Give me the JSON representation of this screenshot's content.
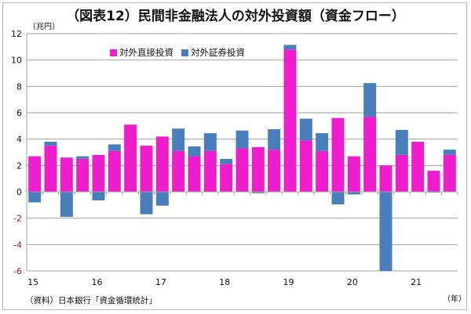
{
  "chart_data": {
    "type": "bar",
    "stacked": true,
    "title": "（図表12）民間非金融法人の対外投資額（資金フロー）",
    "ylabel": "（兆円）",
    "xlabel": "（年）",
    "source": "（資料）日本銀行「資金循環統計」",
    "ylim": [
      -6,
      12
    ],
    "yticks": [
      12,
      10,
      8,
      6,
      4,
      2,
      0,
      -2,
      -4,
      -6
    ],
    "grid": true,
    "legend_position": "top-left",
    "year_labels": [
      "15",
      "16",
      "17",
      "18",
      "19",
      "20",
      "21"
    ],
    "categories": [
      "15Q1",
      "15Q2",
      "15Q3",
      "15Q4",
      "16Q1",
      "16Q2",
      "16Q3",
      "16Q4",
      "17Q1",
      "17Q2",
      "17Q3",
      "17Q4",
      "18Q1",
      "18Q2",
      "18Q3",
      "18Q4",
      "19Q1",
      "19Q2",
      "19Q3",
      "19Q4",
      "20Q1",
      "20Q2",
      "20Q3",
      "20Q4",
      "21Q1",
      "21Q2",
      "21Q3"
    ],
    "series": [
      {
        "name": "対外直接投資",
        "color": "#ee1ecd",
        "values": [
          2.7,
          3.5,
          2.6,
          2.5,
          2.8,
          3.1,
          5.1,
          3.5,
          4.2,
          3.1,
          2.7,
          3.1,
          2.1,
          3.3,
          3.4,
          3.2,
          10.8,
          3.9,
          3.1,
          5.6,
          2.7,
          5.7,
          2.0,
          2.8,
          3.8,
          1.6,
          2.8
        ]
      },
      {
        "name": "対外証券投資",
        "color": "#4a7ebb",
        "values": [
          -0.8,
          0.3,
          -1.9,
          0.2,
          -0.65,
          0.5,
          0.0,
          -1.7,
          -1.05,
          1.7,
          0.75,
          1.35,
          0.4,
          1.35,
          -0.1,
          1.55,
          0.35,
          1.65,
          1.35,
          -0.95,
          -0.2,
          2.55,
          -6.0,
          1.9,
          0.0,
          -0.05,
          0.4
        ]
      }
    ]
  }
}
